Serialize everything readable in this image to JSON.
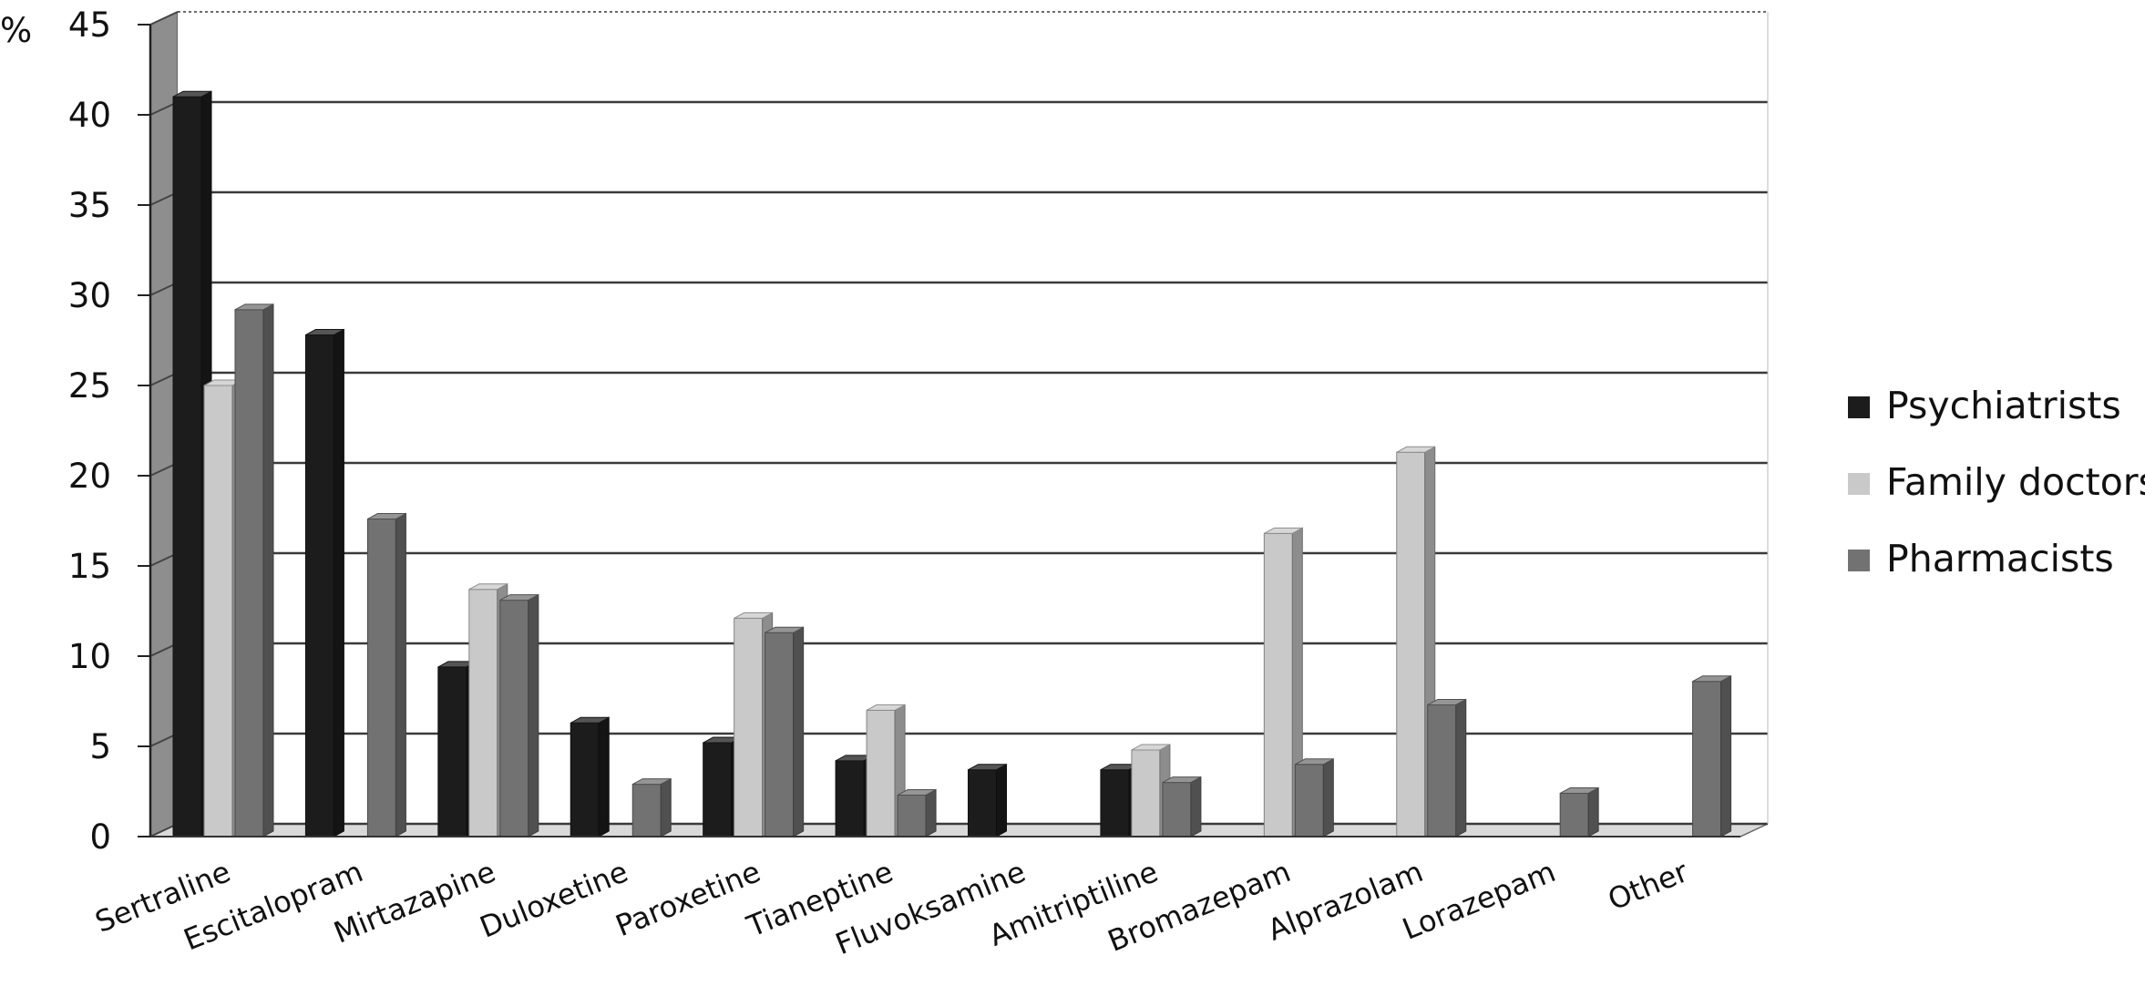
{
  "chart_data": {
    "type": "bar",
    "title": "",
    "xlabel": "",
    "ylabel": "%",
    "ylim": [
      0,
      45
    ],
    "yticks": [
      0,
      5,
      10,
      15,
      20,
      25,
      30,
      35,
      40,
      45
    ],
    "grid": true,
    "legend_position": "right",
    "style": "3d-clustered-column",
    "categories": [
      "Sertraline",
      "Escitalopram",
      "Mirtazapine",
      "Duloxetine",
      "Paroxetine",
      "Tianeptine",
      "Fluvoksamine",
      "Amitriptiline",
      "Bromazepam",
      "Alprazolam",
      "Lorazepam",
      "Other"
    ],
    "series": [
      {
        "name": "Psychiatrists",
        "color": "#1c1c1c",
        "values": [
          41,
          27.8,
          9.4,
          6.3,
          5.2,
          4.2,
          3.7,
          3.7,
          0,
          0,
          0,
          0
        ]
      },
      {
        "name": "Family doctors",
        "color": "#c9c9c9",
        "values": [
          25,
          0,
          13.7,
          0,
          12.1,
          7,
          0,
          4.8,
          16.8,
          21.3,
          0,
          0
        ]
      },
      {
        "name": "Pharmacists",
        "color": "#727272",
        "values": [
          29.2,
          17.6,
          13.1,
          2.9,
          11.3,
          2.3,
          0,
          3,
          4,
          7.3,
          2.4,
          8.6
        ]
      }
    ]
  }
}
